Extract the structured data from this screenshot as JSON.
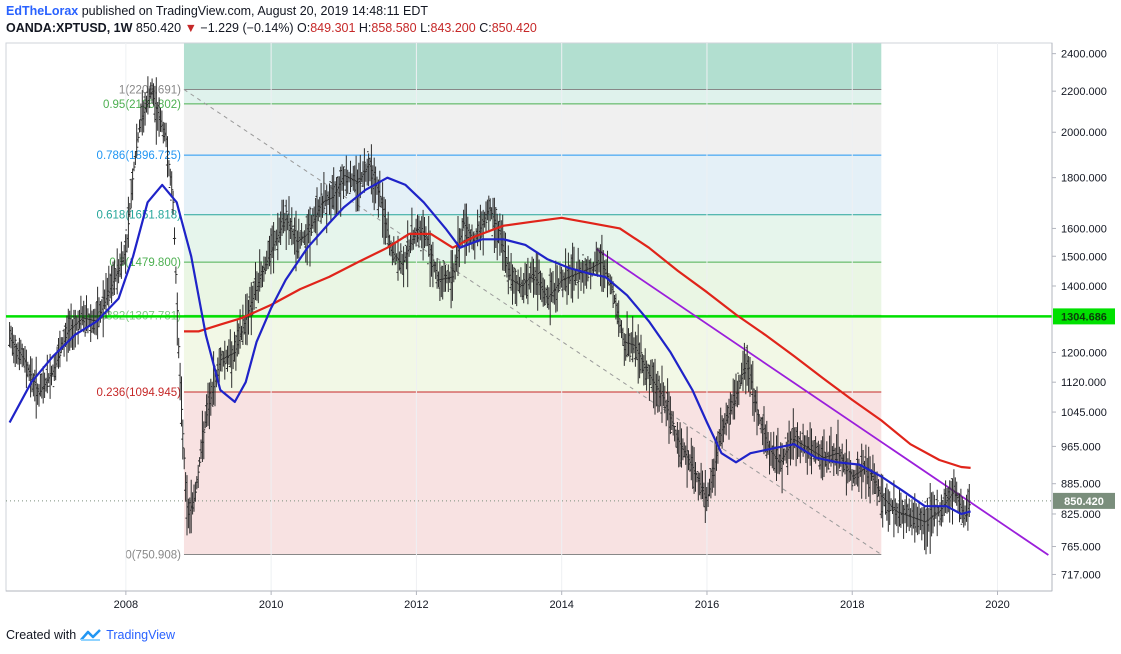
{
  "header": {
    "author": "EdTheLorax",
    "published": "published on TradingView.com, August 20, 2019 14:48:11 EDT",
    "symbol": "OANDA:XPTUSD, 1W",
    "last": "850.420",
    "change": "−1.229 (−0.14%)",
    "o_label": "O:",
    "o_value": "849.301",
    "h_label": "H:",
    "h_value": "858.580",
    "l_label": "L:",
    "l_value": "843.200",
    "c_label": "C:",
    "c_value": "850.420"
  },
  "footer": {
    "created_with": "Created with",
    "brand": "TradingView"
  },
  "colors": {
    "fib_top": "#b2dfd0",
    "fib_1_095": "#dff2ec",
    "fib_095_0786": "#f0f0f0",
    "fib_0786_0618": "#e4f0f7",
    "fib_0618_05": "#e6f5ec",
    "fib_05_0382": "#eaf6e4",
    "fib_0382_0236": "#f2f8e6",
    "fib_0236_0": "#f8e2e2",
    "ma_short": "#1f23c8",
    "ma_long": "#e0241a",
    "trendline": "#9b1fdb",
    "horizontal": "#00e000",
    "candle": "#2d2d2d",
    "price_badge": "#7a8e7c"
  },
  "chart_data": {
    "type": "line",
    "title": "",
    "xlabel": "",
    "ylabel": "",
    "y_scale": "log",
    "x_range": [
      2006.35,
      2020.75
    ],
    "y_range": [
      690,
      2460
    ],
    "x_ticks": [
      2008,
      2010,
      2012,
      2014,
      2016,
      2018,
      2020
    ],
    "y_ticks": [
      {
        "v": 2400,
        "label": "2400.000"
      },
      {
        "v": 2200,
        "label": "2200.000"
      },
      {
        "v": 2000,
        "label": "2000.000"
      },
      {
        "v": 1800,
        "label": "1800.000"
      },
      {
        "v": 1600,
        "label": "1600.000"
      },
      {
        "v": 1500,
        "label": "1500.000"
      },
      {
        "v": 1400,
        "label": "1400.000"
      },
      {
        "v": 1200,
        "label": "1200.000"
      },
      {
        "v": 1120,
        "label": "1120.000"
      },
      {
        "v": 1045,
        "label": "1045.000"
      },
      {
        "v": 965,
        "label": "965.000"
      },
      {
        "v": 885,
        "label": "885.000"
      },
      {
        "v": 825,
        "label": "825.000"
      },
      {
        "v": 765,
        "label": "765.000"
      },
      {
        "v": 717,
        "label": "717.000"
      }
    ],
    "fib_retracement": {
      "x_start": 2008.8,
      "x_end": 2018.4,
      "levels": [
        {
          "ratio": "1",
          "value": 2208.691,
          "label": "1(2208.691)",
          "color": "#888888"
        },
        {
          "ratio": "0.95",
          "value": 2135.802,
          "label": "0.95(2135.802)",
          "color": "#4caf50"
        },
        {
          "ratio": "0.786",
          "value": 1896.725,
          "label": "0.786(1896.725)",
          "color": "#2196f3"
        },
        {
          "ratio": "0.618",
          "value": 1651.818,
          "label": "0.618(1651.818)",
          "color": "#26a69a"
        },
        {
          "ratio": "0.5",
          "value": 1479.8,
          "label": "0.5(1479.800)",
          "color": "#4caf50"
        },
        {
          "ratio": "0.382",
          "value": 1307.781,
          "label": "0.382(1307.781)",
          "color": "#81c784"
        },
        {
          "ratio": "0.236",
          "value": 1094.945,
          "label": "0.236(1094.945)",
          "color": "#c62828"
        },
        {
          "ratio": "0",
          "value": 750.908,
          "label": "0(750.908)",
          "color": "#888888"
        }
      ]
    },
    "horizontal_line": {
      "value": 1304.686,
      "label": "1304.686"
    },
    "last_price": {
      "value": 850.42,
      "label": "850.420"
    },
    "trendline": {
      "x1": 2014.48,
      "y1": 1525,
      "x2": 2020.7,
      "y2": 750
    },
    "diagonal_dashed": {
      "x1": 2008.8,
      "y1": 2208.691,
      "x2": 2018.4,
      "y2": 750.908
    },
    "series": [
      {
        "role": "price",
        "x": [
          2006.4,
          2006.6,
          2006.8,
          2007.0,
          2007.2,
          2007.4,
          2007.6,
          2007.8,
          2008.0,
          2008.1,
          2008.2,
          2008.35,
          2008.45,
          2008.55,
          2008.65,
          2008.75,
          2008.85,
          2008.95,
          2009.1,
          2009.3,
          2009.5,
          2009.7,
          2009.85,
          2010.0,
          2010.2,
          2010.35,
          2010.5,
          2010.7,
          2010.85,
          2011.0,
          2011.2,
          2011.35,
          2011.5,
          2011.65,
          2011.8,
          2012.0,
          2012.15,
          2012.3,
          2012.5,
          2012.65,
          2012.8,
          2013.0,
          2013.15,
          2013.3,
          2013.45,
          2013.6,
          2013.8,
          2014.0,
          2014.2,
          2014.4,
          2014.55,
          2014.7,
          2014.85,
          2015.0,
          2015.2,
          2015.4,
          2015.6,
          2015.8,
          2016.0,
          2016.2,
          2016.4,
          2016.55,
          2016.7,
          2016.85,
          2017.0,
          2017.2,
          2017.4,
          2017.6,
          2017.8,
          2018.0,
          2018.2,
          2018.4,
          2018.6,
          2018.8,
          2019.0,
          2019.2,
          2019.4,
          2019.55,
          2019.63
        ],
        "y": [
          1240,
          1180,
          1090,
          1150,
          1260,
          1300,
          1290,
          1400,
          1520,
          1820,
          2050,
          2200,
          2080,
          1980,
          1700,
          1100,
          820,
          860,
          1030,
          1180,
          1200,
          1330,
          1430,
          1520,
          1640,
          1550,
          1580,
          1700,
          1720,
          1810,
          1780,
          1860,
          1720,
          1520,
          1470,
          1600,
          1560,
          1420,
          1430,
          1620,
          1550,
          1680,
          1580,
          1420,
          1400,
          1440,
          1360,
          1420,
          1440,
          1460,
          1480,
          1390,
          1230,
          1220,
          1140,
          1080,
          980,
          920,
          850,
          1000,
          1080,
          1180,
          1040,
          960,
          930,
          980,
          960,
          940,
          950,
          900,
          920,
          860,
          830,
          820,
          810,
          830,
          870,
          820,
          850
        ]
      },
      {
        "role": "ma_short",
        "x": [
          2006.4,
          2006.7,
          2007.0,
          2007.3,
          2007.6,
          2007.9,
          2008.1,
          2008.3,
          2008.5,
          2008.7,
          2008.9,
          2009.1,
          2009.3,
          2009.5,
          2009.65,
          2009.8,
          2010.0,
          2010.2,
          2010.5,
          2010.8,
          2011.0,
          2011.3,
          2011.6,
          2011.85,
          2012.1,
          2012.4,
          2012.6,
          2012.9,
          2013.2,
          2013.5,
          2013.8,
          2014.1,
          2014.4,
          2014.6,
          2014.9,
          2015.2,
          2015.5,
          2015.8,
          2016.0,
          2016.2,
          2016.4,
          2016.6,
          2016.9,
          2017.2,
          2017.5,
          2017.8,
          2018.1,
          2018.4,
          2018.7,
          2019.0,
          2019.3,
          2019.5,
          2019.63
        ],
        "y": [
          1020,
          1120,
          1190,
          1250,
          1290,
          1360,
          1500,
          1700,
          1770,
          1700,
          1500,
          1250,
          1100,
          1070,
          1120,
          1230,
          1330,
          1420,
          1530,
          1620,
          1680,
          1750,
          1800,
          1770,
          1700,
          1600,
          1530,
          1560,
          1560,
          1540,
          1490,
          1460,
          1440,
          1430,
          1370,
          1290,
          1200,
          1100,
          1020,
          950,
          930,
          950,
          960,
          970,
          940,
          930,
          925,
          900,
          870,
          840,
          840,
          825,
          830
        ]
      },
      {
        "role": "ma_long",
        "x": [
          2008.8,
          2009.0,
          2009.3,
          2009.6,
          2010.0,
          2010.4,
          2010.8,
          2011.2,
          2011.6,
          2011.9,
          2012.2,
          2012.5,
          2012.8,
          2013.2,
          2013.6,
          2014.0,
          2014.4,
          2014.8,
          2015.2,
          2015.6,
          2016.0,
          2016.4,
          2016.8,
          2017.2,
          2017.6,
          2018.0,
          2018.4,
          2018.8,
          2019.2,
          2019.5,
          2019.63
        ],
        "y": [
          1260,
          1260,
          1280,
          1300,
          1340,
          1390,
          1430,
          1480,
          1530,
          1580,
          1580,
          1530,
          1570,
          1610,
          1625,
          1640,
          1620,
          1600,
          1530,
          1450,
          1380,
          1310,
          1250,
          1190,
          1130,
          1075,
          1025,
          970,
          935,
          920,
          918
        ]
      }
    ]
  }
}
